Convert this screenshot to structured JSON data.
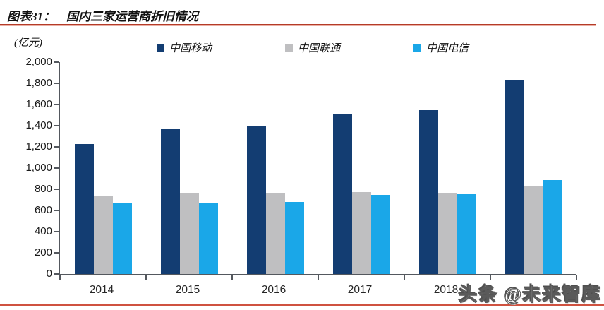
{
  "header": {
    "figure_label": "图表31：",
    "title": "国内三家运营商折旧情况"
  },
  "chart_data": {
    "type": "bar",
    "title": "国内三家运营商折旧情况",
    "unit_label": "(亿元)",
    "categories": [
      "2014",
      "2015",
      "2016",
      "2017",
      "2018",
      ""
    ],
    "series": [
      {
        "name": "中国移动",
        "color": "#133d72",
        "values": [
          1230,
          1370,
          1400,
          1505,
          1550,
          1835
        ]
      },
      {
        "name": "中国联通",
        "color": "#bfbfc1",
        "values": [
          735,
          765,
          765,
          775,
          760,
          835
        ]
      },
      {
        "name": "中国电信",
        "color": "#1aa7e8",
        "values": [
          665,
          675,
          680,
          745,
          755,
          890
        ]
      }
    ],
    "ylim": [
      0,
      2000
    ],
    "y_tick_step": 200,
    "y_tick_labels": [
      "2,000",
      "1,800",
      "1,600",
      "1,400",
      "1,200",
      "1,000",
      "800",
      "600",
      "400",
      "200",
      "0"
    ],
    "legend_position": "top",
    "grid": false,
    "note": "last category label hidden behind watermark"
  },
  "watermark": {
    "text": "头条 @未来智库"
  },
  "colors": {
    "bar_mobile": "#133d72",
    "bar_unicom": "#bfbfc1",
    "bar_telecom": "#1aa7e8",
    "axis": "#54585e",
    "top_rule": "#b43b28",
    "bottom_rule": "#cf5240",
    "text": "#1a1a1a",
    "watermark_gray": "#4f4f4f"
  }
}
